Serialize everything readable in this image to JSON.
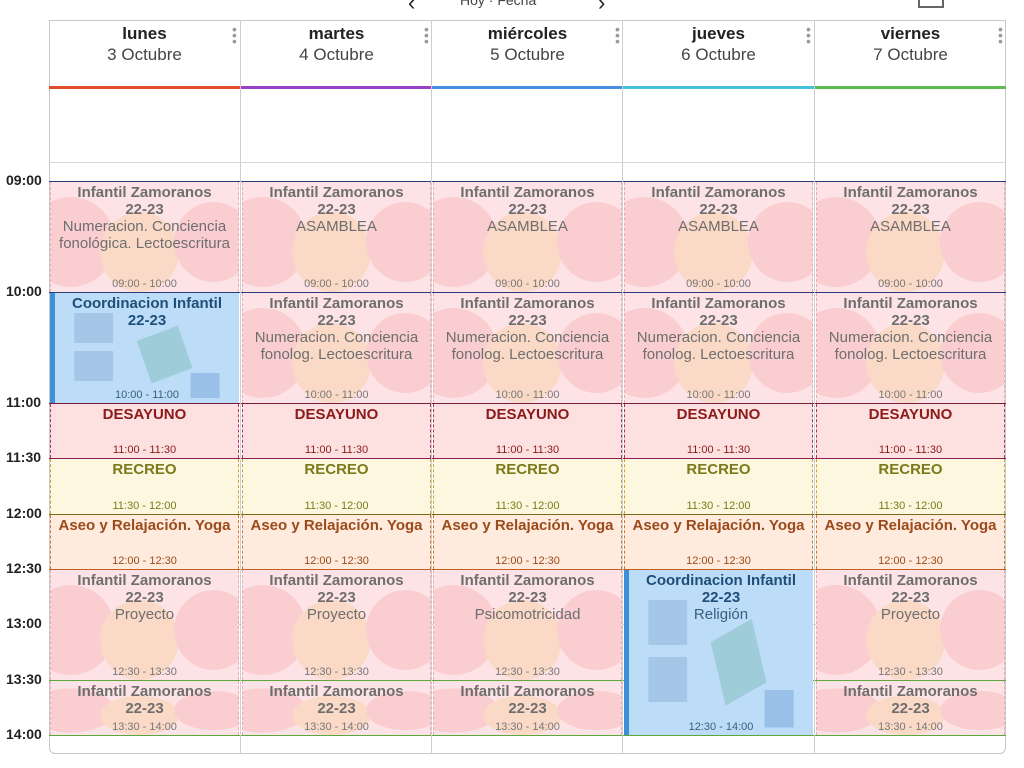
{
  "topbar": {
    "prev": "‹",
    "next": "›",
    "today": "Hoy · Fecha"
  },
  "days": [
    {
      "name": "lunes",
      "date": "3 Octubre",
      "color": "#e04c2c"
    },
    {
      "name": "martes",
      "date": "4 Octubre",
      "color": "#9b3fc6"
    },
    {
      "name": "miércoles",
      "date": "5 Octubre",
      "color": "#4a8fe0"
    },
    {
      "name": "jueves",
      "date": "6 Octubre",
      "color": "#44c2d8"
    },
    {
      "name": "viernes",
      "date": "7 Octubre",
      "color": "#5dbb53"
    }
  ],
  "times": [
    "09:00",
    "10:00",
    "11:00",
    "11:30",
    "12:00",
    "12:30",
    "13:00",
    "13:30",
    "14:00"
  ],
  "events": [
    {
      "day": 0,
      "start": 0,
      "end": 1,
      "title": "Infantil Zamoranos",
      "title2": "22-23",
      "sub": "Numeracion. Conciencia fonológica. Lectoescritura",
      "time": "09:00 - 10:00",
      "style": "pink"
    },
    {
      "day": 1,
      "start": 0,
      "end": 1,
      "title": "Infantil Zamoranos",
      "title2": "22-23",
      "sub": "ASAMBLEA",
      "time": "09:00 - 10:00",
      "style": "pink"
    },
    {
      "day": 2,
      "start": 0,
      "end": 1,
      "title": "Infantil Zamoranos",
      "title2": "22-23",
      "sub": "ASAMBLEA",
      "time": "09:00 - 10:00",
      "style": "pink"
    },
    {
      "day": 3,
      "start": 0,
      "end": 1,
      "title": "Infantil Zamoranos",
      "title2": "22-23",
      "sub": "ASAMBLEA",
      "time": "09:00 - 10:00",
      "style": "pink"
    },
    {
      "day": 4,
      "start": 0,
      "end": 1,
      "title": "Infantil Zamoranos",
      "title2": "22-23",
      "sub": "ASAMBLEA",
      "time": "09:00 - 10:00",
      "style": "pink"
    },
    {
      "day": 0,
      "start": 1,
      "end": 2,
      "title": "Coordinacion Infantil",
      "title2": "22-23",
      "sub": "",
      "time": "10:00 - 11:00",
      "style": "blue"
    },
    {
      "day": 1,
      "start": 1,
      "end": 2,
      "title": "Infantil Zamoranos",
      "title2": "22-23",
      "sub": "Numeracion. Conciencia fonolog. Lectoescritura",
      "time": "10:00 - 11:00",
      "style": "pink"
    },
    {
      "day": 2,
      "start": 1,
      "end": 2,
      "title": "Infantil Zamoranos",
      "title2": "22-23",
      "sub": "Numeracion. Conciencia fonolog. Lectoescritura",
      "time": "10:00 - 11:00",
      "style": "pink"
    },
    {
      "day": 3,
      "start": 1,
      "end": 2,
      "title": "Infantil Zamoranos",
      "title2": "22-23",
      "sub": "Numeracion. Conciencia fonolog. Lectoescritura",
      "time": "10:00 - 11:00",
      "style": "pink"
    },
    {
      "day": 4,
      "start": 1,
      "end": 2,
      "title": "Infantil Zamoranos",
      "title2": "22-23",
      "sub": "Numeracion. Conciencia fonolog. Lectoescritura",
      "time": "10:00 - 11:00",
      "style": "pink"
    },
    {
      "day": 0,
      "start": 2,
      "end": 3,
      "title": "DESAYUNO",
      "title2": "",
      "sub": "",
      "time": "11:00 - 11:30",
      "style": "desayuno"
    },
    {
      "day": 1,
      "start": 2,
      "end": 3,
      "title": "DESAYUNO",
      "title2": "",
      "sub": "",
      "time": "11:00 - 11:30",
      "style": "desayuno"
    },
    {
      "day": 2,
      "start": 2,
      "end": 3,
      "title": "DESAYUNO",
      "title2": "",
      "sub": "",
      "time": "11:00 - 11:30",
      "style": "desayuno"
    },
    {
      "day": 3,
      "start": 2,
      "end": 3,
      "title": "DESAYUNO",
      "title2": "",
      "sub": "",
      "time": "11:00 - 11:30",
      "style": "desayuno"
    },
    {
      "day": 4,
      "start": 2,
      "end": 3,
      "title": "DESAYUNO",
      "title2": "",
      "sub": "",
      "time": "11:00 - 11:30",
      "style": "desayuno"
    },
    {
      "day": 0,
      "start": 3,
      "end": 4,
      "title": "RECREO",
      "title2": "",
      "sub": "",
      "time": "11:30 - 12:00",
      "style": "recreo"
    },
    {
      "day": 1,
      "start": 3,
      "end": 4,
      "title": "RECREO",
      "title2": "",
      "sub": "",
      "time": "11:30 - 12:00",
      "style": "recreo"
    },
    {
      "day": 2,
      "start": 3,
      "end": 4,
      "title": "RECREO",
      "title2": "",
      "sub": "",
      "time": "11:30 - 12:00",
      "style": "recreo"
    },
    {
      "day": 3,
      "start": 3,
      "end": 4,
      "title": "RECREO",
      "title2": "",
      "sub": "",
      "time": "11:30 - 12:00",
      "style": "recreo"
    },
    {
      "day": 4,
      "start": 3,
      "end": 4,
      "title": "RECREO",
      "title2": "",
      "sub": "",
      "time": "11:30 - 12:00",
      "style": "recreo"
    },
    {
      "day": 0,
      "start": 4,
      "end": 5,
      "title": "Aseo y Relajación. Yoga",
      "title2": "",
      "sub": "",
      "time": "12:00 - 12:30",
      "style": "aseo"
    },
    {
      "day": 1,
      "start": 4,
      "end": 5,
      "title": "Aseo y Relajación. Yoga",
      "title2": "",
      "sub": "",
      "time": "12:00 - 12:30",
      "style": "aseo"
    },
    {
      "day": 2,
      "start": 4,
      "end": 5,
      "title": "Aseo y Relajación. Yoga",
      "title2": "",
      "sub": "",
      "time": "12:00 - 12:30",
      "style": "aseo"
    },
    {
      "day": 3,
      "start": 4,
      "end": 5,
      "title": "Aseo y Relajación. Yoga",
      "title2": "",
      "sub": "",
      "time": "12:00 - 12:30",
      "style": "aseo"
    },
    {
      "day": 4,
      "start": 4,
      "end": 5,
      "title": "Aseo y Relajación. Yoga",
      "title2": "",
      "sub": "",
      "time": "12:00 - 12:30",
      "style": "aseo"
    },
    {
      "day": 0,
      "start": 5,
      "end": 7,
      "title": "Infantil Zamoranos",
      "title2": "22-23",
      "sub": "Proyecto",
      "time": "12:30 - 13:30",
      "style": "pink"
    },
    {
      "day": 1,
      "start": 5,
      "end": 7,
      "title": "Infantil Zamoranos",
      "title2": "22-23",
      "sub": "Proyecto",
      "time": "12:30 - 13:30",
      "style": "pink"
    },
    {
      "day": 2,
      "start": 5,
      "end": 7,
      "title": "Infantil Zamoranos",
      "title2": "22-23",
      "sub": "Psicomotricidad",
      "time": "12:30 - 13:30",
      "style": "pink"
    },
    {
      "day": 3,
      "start": 5,
      "end": 8,
      "title": "Coordinacion Infantil",
      "title2": "22-23",
      "sub": "Religión",
      "time": "12:30 - 14:00",
      "style": "blue"
    },
    {
      "day": 4,
      "start": 5,
      "end": 7,
      "title": "Infantil Zamoranos",
      "title2": "22-23",
      "sub": "Proyecto",
      "time": "12:30 - 13:30",
      "style": "pink"
    },
    {
      "day": 0,
      "start": 7,
      "end": 8,
      "title": "Infantil Zamoranos",
      "title2": "22-23",
      "sub": "",
      "time": "13:30 - 14:00",
      "style": "pink"
    },
    {
      "day": 1,
      "start": 7,
      "end": 8,
      "title": "Infantil Zamoranos",
      "title2": "22-23",
      "sub": "",
      "time": "13:30 - 14:00",
      "style": "pink"
    },
    {
      "day": 2,
      "start": 7,
      "end": 8,
      "title": "Infantil Zamoranos",
      "title2": "22-23",
      "sub": "",
      "time": "13:30 - 14:00",
      "style": "pink"
    },
    {
      "day": 4,
      "start": 7,
      "end": 8,
      "title": "Infantil Zamoranos",
      "title2": "22-23",
      "sub": "",
      "time": "13:30 - 14:00",
      "style": "pink"
    }
  ],
  "styles": {
    "pink": {
      "bg": "#fde3e6",
      "title": "#6e6e6e",
      "sub": "#6e6e6e",
      "time": "#777777",
      "border": "#e9a7b5"
    },
    "blue": {
      "bg": "#bcdcf8",
      "title": "#1f4e78",
      "sub": "#3a5f80",
      "time": "#3a5f80",
      "border": "#3d8fd8"
    },
    "desayuno": {
      "bg": "#fde0e0",
      "title": "#8b1a1a",
      "sub": "#8b1a1a",
      "time": "#8b1a1a",
      "border": "#b03060"
    },
    "recreo": {
      "bg": "#fdf7e0",
      "title": "#7a7a1a",
      "sub": "#7a7a1a",
      "time": "#7a7a1a",
      "border": "#c7a33a"
    },
    "aseo": {
      "bg": "#feebdd",
      "title": "#9b4a1a",
      "sub": "#9b4a1a",
      "time": "#9b4a1a",
      "border": "#d07a30"
    }
  }
}
